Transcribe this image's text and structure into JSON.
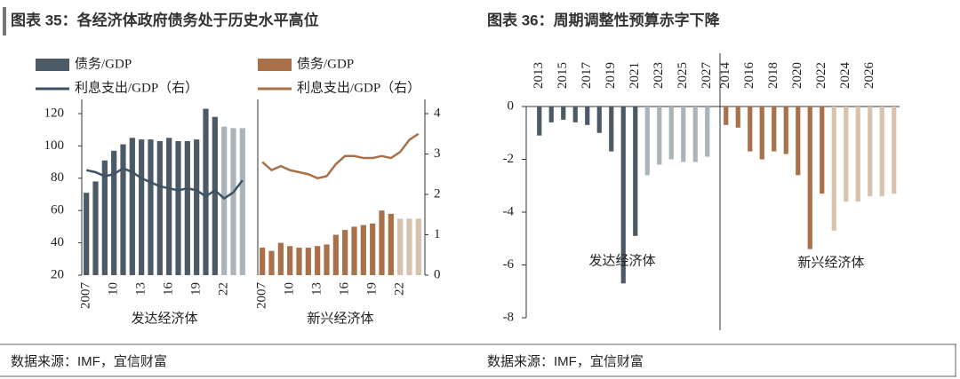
{
  "chart_data": [
    {
      "type": "bar_line",
      "title": "图表 35：各经济体政府债务处于历史水平高位",
      "source": "数据来源：IMF，宜信财富",
      "ylim": [
        20,
        120
      ],
      "yticks": [
        20,
        40,
        60,
        80,
        100,
        120
      ],
      "y2lim": [
        0,
        4
      ],
      "y2ticks": [
        0,
        1,
        2,
        3,
        4
      ],
      "panels": [
        {
          "xlabel": "发达经济体",
          "categories": [
            "2007",
            null,
            null,
            "10",
            null,
            null,
            "13",
            null,
            null,
            "16",
            null,
            null,
            "19",
            null,
            null,
            "22",
            null,
            null
          ],
          "series": [
            {
              "name": "债务/GDP",
              "type": "bar",
              "color": "#4b5a65",
              "colors": [
                "#4b5a65",
                "#4b5a65",
                "#4b5a65",
                "#4b5a65",
                "#4b5a65",
                "#4b5a65",
                "#4b5a65",
                "#4b5a65",
                "#4b5a65",
                "#4b5a65",
                "#4b5a65",
                "#4b5a65",
                "#4b5a65",
                "#4b5a65",
                "#4b5a65",
                "#aab4ba",
                "#aab4ba",
                "#aab4ba"
              ],
              "values": [
                71,
                78,
                91,
                97,
                101,
                105,
                104,
                104,
                103,
                105,
                103,
                103,
                104,
                123,
                118,
                112,
                111,
                111
              ]
            },
            {
              "name": "利息支出/GDP（右）",
              "type": "line",
              "axis": "y2",
              "color": "#3e5263",
              "values": [
                2.6,
                2.55,
                2.45,
                2.5,
                2.65,
                2.55,
                2.4,
                2.3,
                2.2,
                2.15,
                2.1,
                2.15,
                2.1,
                1.95,
                2.1,
                1.9,
                2.05,
                2.35
              ]
            }
          ]
        },
        {
          "xlabel": "新兴经济体",
          "categories": [
            "2007",
            null,
            null,
            "10",
            null,
            null,
            "13",
            null,
            null,
            "16",
            null,
            null,
            "19",
            null,
            null,
            "22",
            null,
            null
          ],
          "series": [
            {
              "name": "债务/GDP",
              "type": "bar",
              "color": "#a8714a",
              "colors": [
                "#a8714a",
                "#a8714a",
                "#a8714a",
                "#a8714a",
                "#a8714a",
                "#a8714a",
                "#a8714a",
                "#a8714a",
                "#a8714a",
                "#a8714a",
                "#a8714a",
                "#a8714a",
                "#a8714a",
                "#a8714a",
                "#a8714a",
                "#d8c2ae",
                "#d8c2ae",
                "#d8c2ae"
              ],
              "values": [
                37,
                35,
                40,
                38,
                37,
                37,
                38,
                39,
                45,
                48,
                50,
                51,
                52,
                60,
                58,
                55,
                55,
                55
              ]
            },
            {
              "name": "利息支出/GDP（右）",
              "type": "line",
              "axis": "y2",
              "color": "#a8714a",
              "values": [
                2.8,
                2.6,
                2.7,
                2.6,
                2.55,
                2.5,
                2.4,
                2.45,
                2.75,
                2.95,
                2.95,
                2.9,
                2.9,
                2.95,
                2.9,
                3.05,
                3.35,
                3.5
              ]
            }
          ]
        }
      ]
    },
    {
      "type": "bar",
      "title": "图表 36：周期调整性预算赤字下降",
      "source": "数据来源：IMF，宜信财富",
      "ylim": [
        -8,
        0
      ],
      "yticks": [
        0,
        -2,
        -4,
        -6,
        -8
      ],
      "groups": [
        {
          "annotation": "发达经济体",
          "categories": [
            "2013",
            null,
            "2015",
            null,
            "2017",
            null,
            "2019",
            null,
            "2021",
            null,
            "2023",
            null,
            "2025",
            null,
            "2027"
          ],
          "values": [
            -1.1,
            -0.6,
            -0.5,
            -0.6,
            -0.7,
            -1.0,
            -1.7,
            -6.7,
            -4.9,
            -2.6,
            -2.2,
            -2.0,
            -2.1,
            -2.1,
            -1.9
          ],
          "colors": [
            "#4b5a65",
            "#4b5a65",
            "#4b5a65",
            "#4b5a65",
            "#4b5a65",
            "#4b5a65",
            "#4b5a65",
            "#4b5a65",
            "#4b5a65",
            "#aab4ba",
            "#aab4ba",
            "#aab4ba",
            "#aab4ba",
            "#aab4ba",
            "#aab4ba"
          ]
        },
        {
          "annotation": "新兴经济体",
          "categories": [
            "2014",
            null,
            "2016",
            null,
            "2018",
            null,
            "2020",
            null,
            "2022",
            null,
            "2024",
            null,
            "2026",
            null,
            null
          ],
          "values": [
            -0.7,
            -0.8,
            -1.7,
            -2.0,
            -1.7,
            -1.8,
            -2.6,
            -5.4,
            -3.3,
            -4.7,
            -3.6,
            -3.6,
            -3.4,
            -3.4,
            -3.3
          ],
          "colors": [
            "#a8714a",
            "#a8714a",
            "#a8714a",
            "#a8714a",
            "#a8714a",
            "#a8714a",
            "#a8714a",
            "#a8714a",
            "#a8714a",
            "#d8c2ae",
            "#d8c2ae",
            "#d8c2ae",
            "#d8c2ae",
            "#d8c2ae",
            "#d8c2ae"
          ]
        }
      ]
    }
  ]
}
